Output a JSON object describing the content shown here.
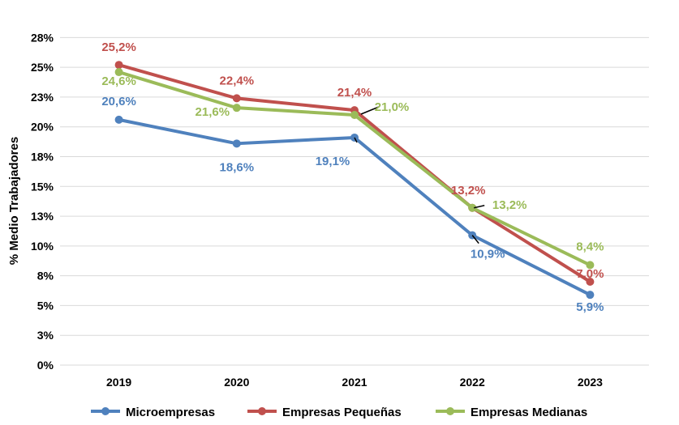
{
  "chart_data": {
    "type": "line",
    "categories": [
      "2019",
      "2020",
      "2021",
      "2022",
      "2023"
    ],
    "ylabel": "% Medio Trabajadores",
    "ylim": [
      0,
      28
    ],
    "y_ticks": [
      "0%",
      "3%",
      "5%",
      "8%",
      "10%",
      "13%",
      "15%",
      "18%",
      "20%",
      "23%",
      "25%",
      "28%"
    ],
    "y_tick_values": [
      0,
      2.5,
      5,
      7.5,
      10,
      12.5,
      15,
      17.5,
      20,
      22.5,
      25,
      27.5
    ],
    "grid": true,
    "legend_position": "bottom",
    "series": [
      {
        "name": "Microempresas",
        "color": "#4f81bd",
        "values": [
          20.6,
          18.6,
          19.1,
          10.9,
          5.9
        ],
        "labels": [
          "20,6%",
          "18,6%",
          "19,1%",
          "10,9%",
          "5,9%"
        ]
      },
      {
        "name": "Empresas Pequeñas",
        "color": "#c0504d",
        "values": [
          25.2,
          22.4,
          21.4,
          13.2,
          7.0
        ],
        "labels": [
          "25,2%",
          "22,4%",
          "21,4%",
          "13,2%",
          "7,0%"
        ]
      },
      {
        "name": "Empresas Medianas",
        "color": "#9bbb59",
        "values": [
          24.6,
          21.6,
          21.0,
          13.2,
          8.4
        ],
        "labels": [
          "24,6%",
          "21,6%",
          "21,0%",
          "13,2%",
          "8,4%"
        ]
      }
    ]
  }
}
